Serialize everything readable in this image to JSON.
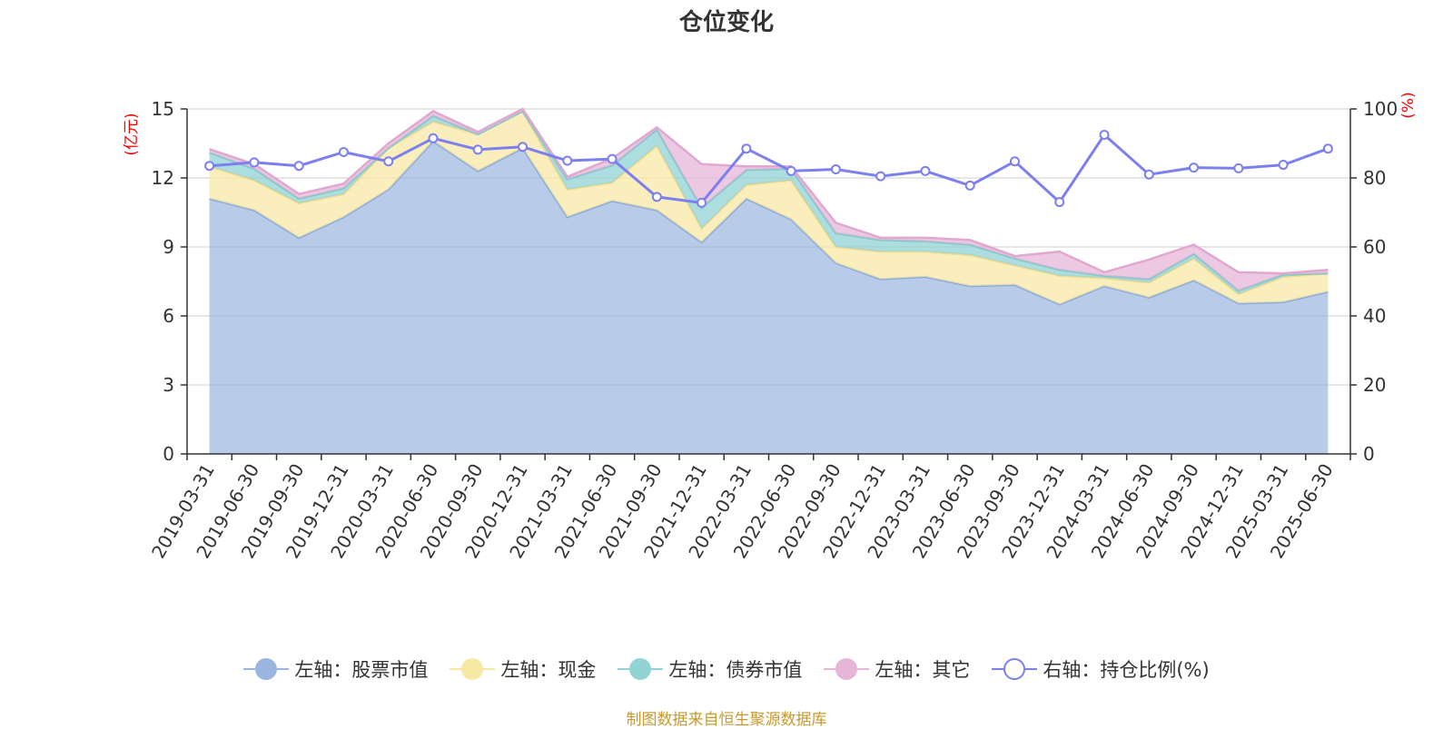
{
  "title": "仓位变化",
  "footer": "制图数据来自恒生聚源数据库",
  "colors": {
    "stock": "#9ab6e0",
    "cash": "#f8e8a6",
    "bond": "#92d3d4",
    "other": "#e6b6d8",
    "ratio": "#7b7ff0",
    "unit": "#ff0000"
  },
  "chart_data": {
    "type": "area",
    "title": "仓位变化",
    "left_axis": {
      "unit": "(亿元)",
      "ylim": [
        0,
        15
      ],
      "ticks": [
        0,
        3,
        6,
        9,
        12,
        15
      ]
    },
    "right_axis": {
      "unit": "(%)",
      "ylim": [
        0,
        100
      ],
      "ticks": [
        0,
        20,
        40,
        60,
        80,
        100
      ]
    },
    "grid": true,
    "legend_position": "bottom",
    "categories": [
      "2019-03-31",
      "2019-06-30",
      "2019-09-30",
      "2019-12-31",
      "2020-03-31",
      "2020-06-30",
      "2020-09-30",
      "2020-12-31",
      "2021-03-31",
      "2021-06-30",
      "2021-09-30",
      "2021-12-31",
      "2022-03-31",
      "2022-06-30",
      "2022-09-30",
      "2022-12-31",
      "2023-03-31",
      "2023-06-30",
      "2023-09-30",
      "2023-12-31",
      "2024-03-31",
      "2024-06-30",
      "2024-09-30",
      "2024-12-31",
      "2025-03-31",
      "2025-06-30"
    ],
    "series": [
      {
        "name": "左轴：股票市值",
        "axis": "left",
        "stacked": true,
        "values": [
          11.1,
          10.6,
          9.4,
          10.3,
          11.5,
          13.6,
          12.3,
          13.3,
          10.3,
          11.0,
          10.6,
          9.2,
          11.1,
          10.2,
          8.3,
          7.6,
          7.7,
          7.3,
          7.35,
          6.5,
          7.3,
          6.8,
          7.55,
          6.55,
          6.6,
          7.05
        ]
      },
      {
        "name": "左轴：现金",
        "axis": "left",
        "stacked": true,
        "values": [
          1.4,
          1.3,
          1.5,
          1.0,
          1.8,
          0.85,
          1.6,
          1.6,
          1.2,
          0.8,
          2.8,
          0.6,
          0.6,
          1.7,
          0.7,
          1.2,
          1.1,
          1.35,
          0.85,
          1.25,
          0.35,
          0.65,
          0.95,
          0.4,
          1.1,
          0.8
        ]
      },
      {
        "name": "左轴：债券市值",
        "axis": "left",
        "stacked": true,
        "values": [
          0.6,
          0.5,
          0.2,
          0.25,
          0.0,
          0.25,
          0.0,
          0.0,
          0.45,
          0.75,
          0.7,
          0.9,
          0.65,
          0.5,
          0.6,
          0.5,
          0.45,
          0.45,
          0.3,
          0.25,
          0.1,
          0.15,
          0.2,
          0.15,
          0.1,
          0.0
        ]
      },
      {
        "name": "左轴：其它",
        "axis": "left",
        "stacked": true,
        "values": [
          0.15,
          0.2,
          0.2,
          0.2,
          0.2,
          0.2,
          0.1,
          0.1,
          0.1,
          0.3,
          0.1,
          1.9,
          0.15,
          0.1,
          0.45,
          0.1,
          0.15,
          0.2,
          0.1,
          0.8,
          0.15,
          0.85,
          0.4,
          0.8,
          0.05,
          0.15
        ]
      },
      {
        "name": "右轴：持仓比例(%)",
        "axis": "right",
        "type": "line",
        "values": [
          83.5,
          84.5,
          83.5,
          87.5,
          84.8,
          91.5,
          88.2,
          89.0,
          85.0,
          85.5,
          74.5,
          72.8,
          88.5,
          82.0,
          82.5,
          80.5,
          82.0,
          77.8,
          84.8,
          73.0,
          92.5,
          81.0,
          83.0,
          82.8,
          83.8,
          88.5
        ]
      }
    ]
  },
  "legend": [
    {
      "label": "左轴：股票市值",
      "color": "#9ab6e0",
      "type": "area"
    },
    {
      "label": "左轴：现金",
      "color": "#f8e8a6",
      "type": "area"
    },
    {
      "label": "左轴：债券市值",
      "color": "#92d3d4",
      "type": "area"
    },
    {
      "label": "左轴：其它",
      "color": "#e6b6d8",
      "type": "area"
    },
    {
      "label": "右轴：持仓比例(%)",
      "color": "#7b7ff0",
      "type": "line"
    }
  ]
}
